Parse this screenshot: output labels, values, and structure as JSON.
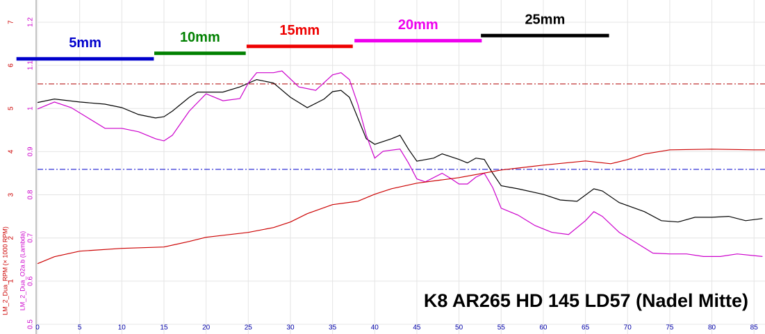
{
  "chart_data": {
    "type": "line",
    "title": "K8 AR265 HD 145 LD57 (Nadel Mitte)",
    "y_label": "LM_2_Dua_O2a.b (Lambda)",
    "y2_label": "LM_2_Dua_RPM (× 1000 RPM)",
    "xlim": [
      0,
      86.3
    ],
    "xticks": [
      0,
      5,
      10,
      15,
      20,
      25,
      30,
      35,
      40,
      45,
      50,
      55,
      60,
      65,
      70,
      75,
      80,
      85
    ],
    "ylim": [
      0.4775,
      1.2514
    ],
    "yticks": [
      0.5,
      0.6,
      0.7,
      0.8,
      0.9,
      1.0,
      1.1,
      1.2
    ],
    "y2lim": [
      -0.225,
      7.514
    ],
    "y2ticks": [
      1,
      2,
      3,
      4,
      5,
      6,
      7
    ],
    "grid": true,
    "series": [
      {
        "name": "LM_2_Dua_O2a.b",
        "color": "#000000",
        "x": [
          0,
          2,
          5,
          8,
          10,
          12,
          14,
          15,
          16,
          18,
          19,
          22,
          24,
          26,
          28,
          30,
          32,
          34,
          35,
          36,
          37,
          38,
          39,
          40,
          42,
          43,
          44,
          45,
          47,
          48,
          50,
          51,
          52,
          53,
          54,
          55,
          57,
          60,
          62,
          64,
          66,
          67,
          69,
          72,
          74,
          76,
          78,
          80,
          82,
          84,
          86
        ],
        "values": [
          1.014,
          1.022,
          1.015,
          1.01,
          1.002,
          0.986,
          0.978,
          0.981,
          0.994,
          1.026,
          1.038,
          1.038,
          1.05,
          1.067,
          1.059,
          1.026,
          1.002,
          1.022,
          1.039,
          1.042,
          1.026,
          0.978,
          0.93,
          0.917,
          0.93,
          0.938,
          0.906,
          0.878,
          0.885,
          0.895,
          0.882,
          0.874,
          0.885,
          0.882,
          0.85,
          0.821,
          0.814,
          0.801,
          0.788,
          0.785,
          0.814,
          0.809,
          0.782,
          0.761,
          0.74,
          0.737,
          0.748,
          0.748,
          0.75,
          0.74,
          0.745
        ]
      },
      {
        "name": "LM_2_Dua_O2a.b (2)",
        "color": "#cc00cc",
        "x": [
          0,
          2,
          4,
          6,
          8,
          10,
          12,
          14,
          15,
          16,
          18,
          20,
          22,
          24,
          25,
          26,
          28,
          29,
          31,
          33,
          35,
          36,
          37,
          38,
          39,
          40,
          41,
          43,
          44,
          45,
          46,
          48,
          49,
          50,
          51,
          52,
          53,
          54,
          55,
          57,
          59,
          61,
          63,
          65,
          66,
          67,
          69,
          71,
          73,
          75,
          77,
          79,
          81,
          83,
          86
        ],
        "values": [
          0.999,
          1.015,
          1.002,
          0.978,
          0.954,
          0.954,
          0.946,
          0.93,
          0.925,
          0.938,
          0.994,
          1.034,
          1.018,
          1.023,
          1.059,
          1.083,
          1.083,
          1.087,
          1.05,
          1.042,
          1.078,
          1.083,
          1.067,
          1.01,
          0.938,
          0.885,
          0.901,
          0.906,
          0.874,
          0.837,
          0.83,
          0.85,
          0.838,
          0.825,
          0.825,
          0.841,
          0.85,
          0.817,
          0.769,
          0.753,
          0.729,
          0.713,
          0.708,
          0.74,
          0.761,
          0.75,
          0.713,
          0.689,
          0.665,
          0.663,
          0.663,
          0.657,
          0.657,
          0.663,
          0.657
        ]
      },
      {
        "name": "LM_2_Dua_RPM",
        "color": "#cc0000",
        "axis": "y2",
        "x": [
          0,
          2,
          5,
          10,
          15,
          18,
          20,
          25,
          28,
          30,
          32,
          35,
          38,
          40,
          42,
          45,
          50,
          55,
          60,
          65,
          68,
          70,
          72,
          75,
          80,
          85,
          86.3
        ],
        "values": [
          1.405,
          1.566,
          1.695,
          1.759,
          1.791,
          1.92,
          2.016,
          2.129,
          2.241,
          2.37,
          2.563,
          2.772,
          2.852,
          3.013,
          3.141,
          3.27,
          3.399,
          3.576,
          3.688,
          3.785,
          3.72,
          3.817,
          3.945,
          4.042,
          4.058,
          4.042,
          4.042
        ]
      }
    ],
    "hlines": [
      {
        "value": 1.057,
        "color": "#b00000"
      },
      {
        "value": 0.859,
        "color": "#0000cc"
      }
    ],
    "annotations": [
      {
        "label": "5mm",
        "color": "#0000cc",
        "x": [
          -2.5,
          13.8
        ],
        "y": 1.115
      },
      {
        "label": "10mm",
        "color": "#008000",
        "x": [
          13.85,
          24.7
        ],
        "y": 1.128
      },
      {
        "label": "15mm",
        "color": "#ee0000",
        "x": [
          24.8,
          37.4
        ],
        "y": 1.144
      },
      {
        "label": "20mm",
        "color": "#ee00ee",
        "x": [
          37.6,
          52.7
        ],
        "y": 1.157
      },
      {
        "label": "25mm",
        "color": "#000000",
        "x": [
          52.6,
          67.8
        ],
        "y": 1.169
      }
    ]
  }
}
